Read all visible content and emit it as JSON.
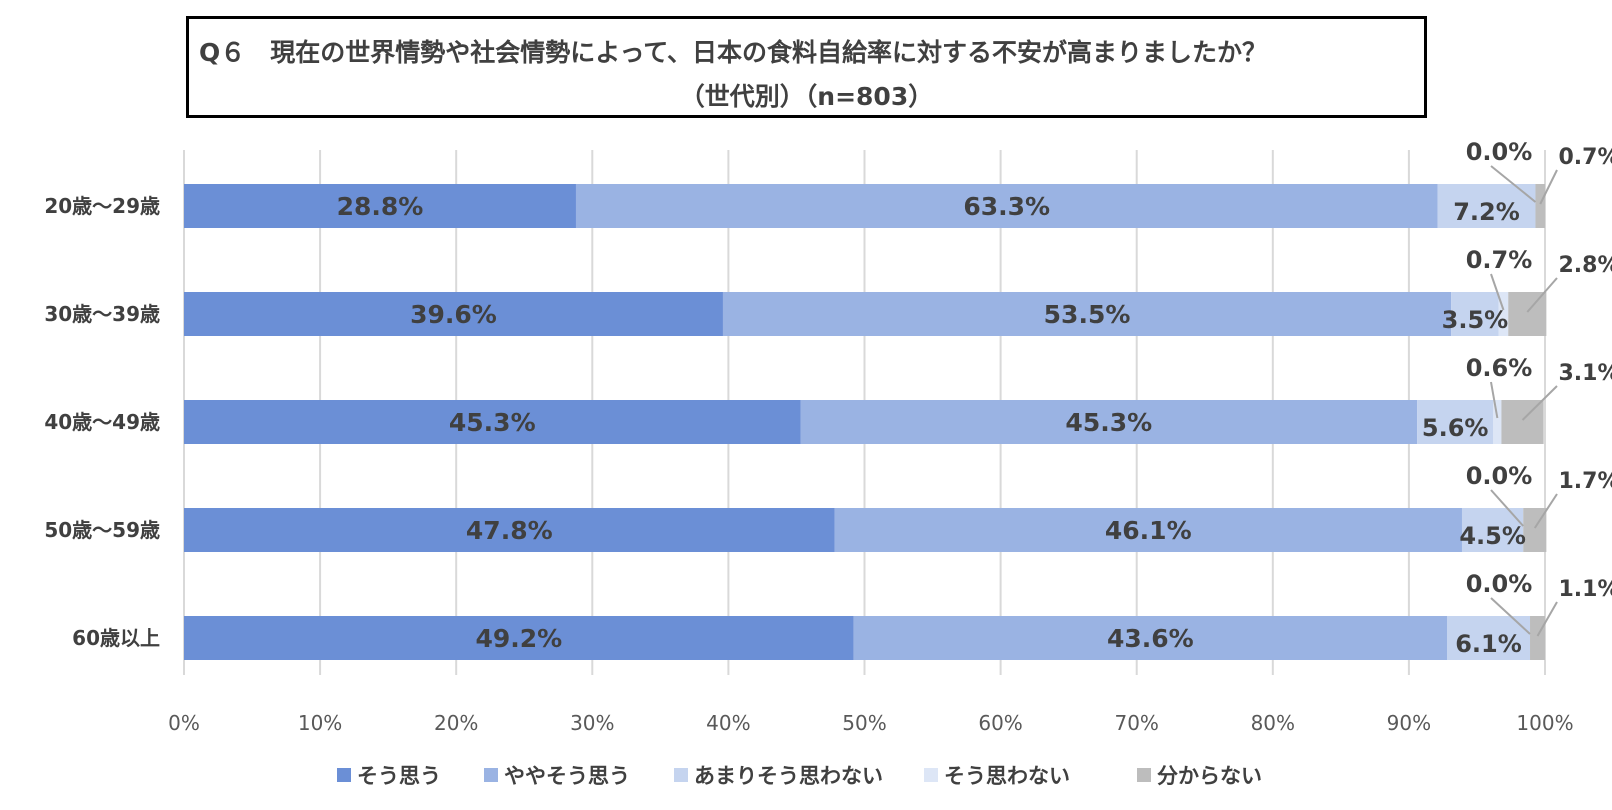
{
  "title": {
    "line1": "Q６　現在の世界情勢や社会情勢によって、日本の食料自給率に対する不安が高まりましたか？",
    "line2": "（世代別）（n=803）"
  },
  "chart_data": {
    "type": "bar",
    "orientation": "horizontal-stacked-100",
    "title": "Q６　現在の世界情勢や社会情勢によって、日本の食料自給率に対する不安が高まりましたか？（世代別）（n=803）",
    "categories": [
      "20歳～29歳",
      "30歳～39歳",
      "40歳～49歳",
      "50歳～59歳",
      "60歳以上"
    ],
    "series": [
      {
        "name": "そう思う",
        "color": "#6b8fd6",
        "values": [
          28.8,
          39.6,
          45.3,
          47.8,
          49.2
        ]
      },
      {
        "name": "ややそう思う",
        "color": "#9ab3e3",
        "values": [
          63.3,
          53.5,
          45.3,
          46.1,
          43.6
        ]
      },
      {
        "name": "あまりそう思わない",
        "color": "#c5d4ef",
        "values": [
          7.2,
          3.5,
          5.6,
          4.5,
          6.1
        ]
      },
      {
        "name": "そう思わない",
        "color": "#dde6f6",
        "values": [
          0.0,
          0.7,
          0.6,
          0.0,
          0.0
        ]
      },
      {
        "name": "分からない",
        "color": "#bdbdbd",
        "values": [
          0.7,
          2.8,
          3.1,
          1.7,
          1.1
        ]
      }
    ],
    "value_labels": [
      [
        "28.8%",
        "63.3%",
        "7.2%",
        "0.0%",
        "0.7%"
      ],
      [
        "39.6%",
        "53.5%",
        "3.5%",
        "0.7%",
        "2.8%"
      ],
      [
        "45.3%",
        "45.3%",
        "5.6%",
        "0.6%",
        "3.1%"
      ],
      [
        "47.8%",
        "46.1%",
        "4.5%",
        "0.0%",
        "1.7%"
      ],
      [
        "49.2%",
        "43.6%",
        "6.1%",
        "0.0%",
        "1.1%"
      ]
    ],
    "xlim": [
      0,
      100
    ],
    "xticks": [
      "0%",
      "10%",
      "20%",
      "30%",
      "40%",
      "50%",
      "60%",
      "70%",
      "80%",
      "90%",
      "100%"
    ],
    "grid": true,
    "legend_position": "bottom"
  }
}
